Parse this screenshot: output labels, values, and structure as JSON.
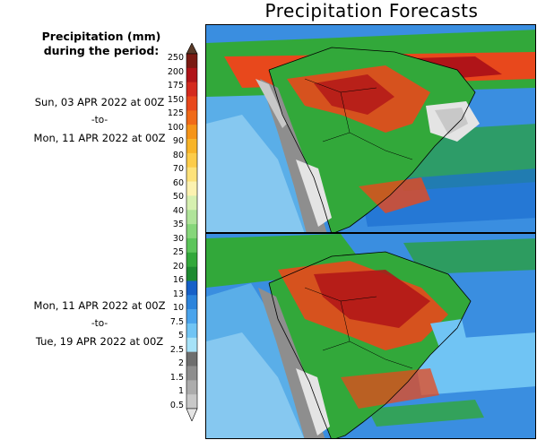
{
  "title": "Precipitation Forecasts",
  "legend": {
    "heading_line1": "Precipitation (mm)",
    "heading_line2": "during the period:",
    "levels": [
      "250",
      "200",
      "175",
      "150",
      "125",
      "100",
      "90",
      "80",
      "70",
      "60",
      "50",
      "40",
      "35",
      "30",
      "25",
      "20",
      "16",
      "13",
      "10",
      "7.5",
      "5",
      "2.5",
      "2",
      "1.5",
      "1",
      "0.5"
    ],
    "colors": [
      "#5a3a28",
      "#7a1a12",
      "#b01418",
      "#d42a1e",
      "#e8481c",
      "#f06a18",
      "#f59418",
      "#f8b428",
      "#fccc4a",
      "#fde27a",
      "#fcf2b0",
      "#d6f0b0",
      "#b0e49a",
      "#86d67a",
      "#5cc55a",
      "#32a83a",
      "#1d8a30",
      "#1660c8",
      "#2c84dc",
      "#4aa4ec",
      "#70c4f4",
      "#a6e2f8",
      "#6e6e6e",
      "#8e8e8e",
      "#acacac",
      "#c8c8c8",
      "#e4e4e4"
    ]
  },
  "periods": [
    {
      "start": "Sun, 03 APR 2022 at 00Z",
      "sep": "-to-",
      "end": "Mon, 11 APR 2022 at 00Z"
    },
    {
      "start": "Mon, 11 APR 2022 at 00Z",
      "sep": "-to-",
      "end": "Tue, 19 APR 2022 at 00Z"
    }
  ]
}
